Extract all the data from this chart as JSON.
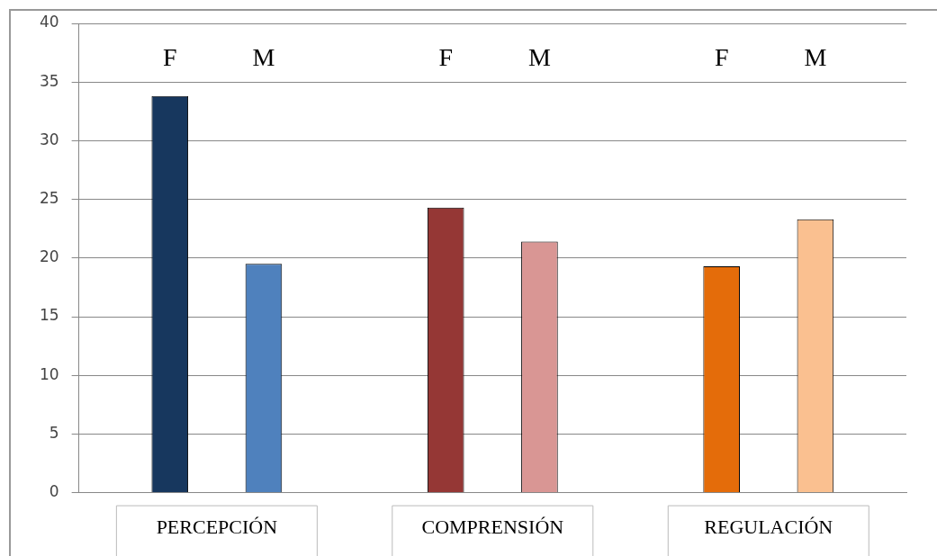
{
  "chart_data": {
    "type": "bar",
    "categories": [
      "F",
      "M",
      "F",
      "M",
      "F",
      "M"
    ],
    "values": [
      33.8,
      19.5,
      24.3,
      21.4,
      19.3,
      23.3
    ],
    "colors": [
      "#17375e",
      "#4f81bd",
      "#953735",
      "#d99694",
      "#e46c0a",
      "#fac090"
    ],
    "annotations": [
      "PERCEPCIÓN",
      "COMPRENSIÓN",
      "REGULACIÓN"
    ],
    "ylim": [
      0,
      40
    ],
    "yticks": [
      0,
      5,
      10,
      15,
      20,
      25,
      30,
      35,
      40
    ],
    "grid": "y",
    "legend": false
  }
}
